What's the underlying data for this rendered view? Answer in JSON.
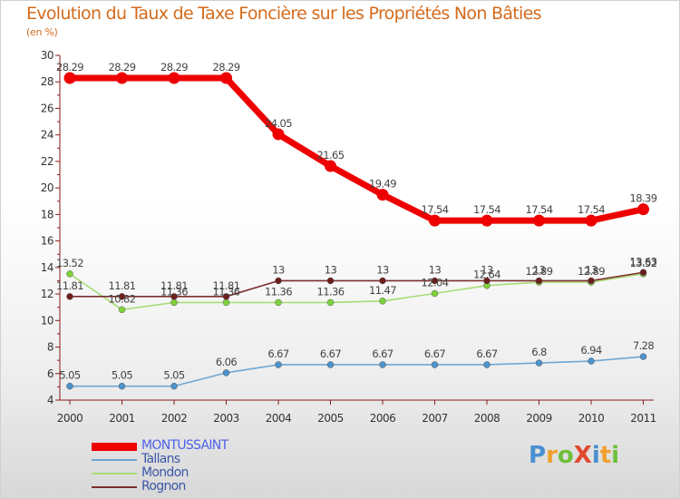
{
  "title": "Evolution du Taux de Taxe Foncière sur les Propriétés Non Bâties",
  "subtitle": "(en %)",
  "logo": "ProXiti",
  "colors": {
    "title": "#d46b1c",
    "axis": "#8b1a1a"
  },
  "chart_data": {
    "type": "line",
    "title": "Evolution du Taux de Taxe Foncière sur les Propriétés Non Bâties",
    "ylabel": "(en %)",
    "xlabel": "",
    "categories": [
      "2000",
      "2001",
      "2002",
      "2003",
      "2004",
      "2005",
      "2006",
      "2007",
      "2008",
      "2009",
      "2010",
      "2011"
    ],
    "ylim": [
      4,
      30
    ],
    "yticks": [
      "4",
      "6",
      "8",
      "10",
      "12",
      "14",
      "16",
      "18",
      "20",
      "22",
      "24",
      "26",
      "28",
      "30"
    ],
    "legend_position": "bottom-left",
    "grid": false,
    "series": [
      {
        "name": "MONTUSSAINT",
        "color": "#ee0000",
        "marker": "#ee0000",
        "values": [
          28.29,
          28.29,
          28.29,
          28.29,
          24.05,
          21.65,
          19.49,
          17.54,
          17.54,
          17.54,
          17.54,
          18.39
        ],
        "labels": [
          "28.29",
          "28.29",
          "28.29",
          "28.29",
          "24.05",
          "21.65",
          "19.49",
          "17.54",
          "17.54",
          "17.54",
          "17.54",
          "18.39"
        ]
      },
      {
        "name": "Tallans",
        "color": "#6fa7d3",
        "marker": "#4c92cb",
        "values": [
          5.05,
          5.05,
          5.05,
          6.06,
          6.67,
          6.67,
          6.67,
          6.67,
          6.67,
          6.8,
          6.94,
          7.28
        ],
        "labels": [
          "5.05",
          "5.05",
          "5.05",
          "6.06",
          "6.67",
          "6.67",
          "6.67",
          "6.67",
          "6.67",
          "6.8",
          "6.94",
          "7.28"
        ]
      },
      {
        "name": "Mondon",
        "color": "#a8dc78",
        "marker": "#7dd33b",
        "values": [
          13.52,
          10.82,
          11.36,
          11.36,
          11.36,
          11.36,
          11.47,
          12.04,
          12.64,
          12.89,
          12.89,
          13.52
        ],
        "labels": [
          "13.52",
          "10.82",
          "11.36",
          "11.36",
          "11.36",
          "11.36",
          "11.47",
          "12.04",
          "12.64",
          "12.89",
          "12.89",
          "13.52"
        ]
      },
      {
        "name": "Rognon",
        "color": "#7b2f2f",
        "marker": "#6d1d1d",
        "values": [
          11.81,
          11.81,
          11.81,
          11.81,
          13,
          13,
          13,
          13,
          13,
          13,
          13,
          13.63
        ],
        "labels": [
          "11.81",
          "11.81",
          "11.81",
          "11.81",
          "13",
          "13",
          "13",
          "13",
          "13",
          "13",
          "13",
          "13.63"
        ]
      }
    ]
  }
}
